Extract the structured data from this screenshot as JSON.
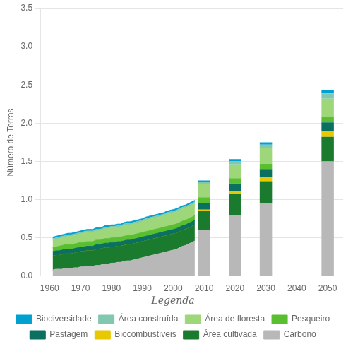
{
  "chart_data": {
    "type": "stacked_area_bar",
    "y_label": "Número de Terras",
    "legend_title": "Legenda",
    "legend": "bottom",
    "stacked": true,
    "grid": "y",
    "xlim": [
      1957,
      2055
    ],
    "xticks": [
      1960,
      1970,
      1980,
      1990,
      2000,
      2010,
      2020,
      2030,
      2040,
      2050
    ],
    "ylim": [
      0,
      3.5
    ],
    "yticks": [
      {
        "value": 0,
        "label": "0.0"
      },
      0.5,
      {
        "value": 1.0,
        "label": "1.0"
      },
      1.5,
      {
        "value": 2.0,
        "label": "2.0"
      },
      2.5,
      {
        "value": 3.0,
        "label": "3.0"
      },
      3.5
    ],
    "x": [
      1961,
      1962,
      1963,
      1964,
      1965,
      1966,
      1967,
      1968,
      1969,
      1970,
      1971,
      1972,
      1973,
      1974,
      1975,
      1976,
      1977,
      1978,
      1979,
      1980,
      1981,
      1982,
      1983,
      1984,
      1985,
      1986,
      1987,
      1988,
      1989,
      1990,
      1991,
      1992,
      1993,
      1994,
      1995,
      1996,
      1997,
      1998,
      1999,
      2000,
      2001,
      2002,
      2003,
      2004,
      2005,
      2006,
      2007
    ],
    "series": [
      {
        "name": "Carbono",
        "color": "#b8b8b8",
        "type": "area",
        "values": [
          0.08,
          0.09,
          0.09,
          0.09,
          0.1,
          0.1,
          0.1,
          0.11,
          0.11,
          0.12,
          0.12,
          0.13,
          0.13,
          0.13,
          0.14,
          0.14,
          0.15,
          0.16,
          0.16,
          0.17,
          0.17,
          0.18,
          0.18,
          0.19,
          0.2,
          0.2,
          0.21,
          0.22,
          0.23,
          0.24,
          0.25,
          0.26,
          0.27,
          0.28,
          0.29,
          0.3,
          0.31,
          0.32,
          0.33,
          0.34,
          0.35,
          0.37,
          0.39,
          0.4,
          0.42,
          0.44,
          0.46
        ]
      },
      {
        "name": "Área cultivada",
        "color": "#1a7a2e",
        "type": "area",
        "values": [
          0.18,
          0.18,
          0.18,
          0.19,
          0.19,
          0.19,
          0.19,
          0.19,
          0.2,
          0.2,
          0.2,
          0.2,
          0.2,
          0.2,
          0.21,
          0.21,
          0.21,
          0.21,
          0.21,
          0.21,
          0.21,
          0.21,
          0.21,
          0.21,
          0.21,
          0.21,
          0.21,
          0.21,
          0.21,
          0.21,
          0.21,
          0.21,
          0.21,
          0.21,
          0.21,
          0.21,
          0.21,
          0.21,
          0.21,
          0.21,
          0.21,
          0.21,
          0.21,
          0.21,
          0.21,
          0.21,
          0.21
        ]
      },
      {
        "name": "Biocombustíveis",
        "color": "#e8c800",
        "type": "area",
        "values": [
          0.0,
          0.0,
          0.0,
          0.0,
          0.0,
          0.0,
          0.0,
          0.0,
          0.0,
          0.0,
          0.0,
          0.0,
          0.0,
          0.0,
          0.0,
          0.0,
          0.0,
          0.0,
          0.0,
          0.0,
          0.0,
          0.0,
          0.0,
          0.0,
          0.0,
          0.0,
          0.0,
          0.0,
          0.0,
          0.0,
          0.0,
          0.0,
          0.0,
          0.0,
          0.0,
          0.0,
          0.0,
          0.0,
          0.0,
          0.0,
          0.0,
          0.0,
          0.0,
          0.0,
          0.0,
          0.0,
          0.0
        ]
      },
      {
        "name": "Pastagem",
        "color": "#0a7060",
        "type": "area",
        "values": [
          0.06,
          0.06,
          0.06,
          0.06,
          0.06,
          0.06,
          0.06,
          0.06,
          0.06,
          0.06,
          0.06,
          0.06,
          0.06,
          0.06,
          0.06,
          0.06,
          0.06,
          0.06,
          0.06,
          0.06,
          0.06,
          0.06,
          0.06,
          0.06,
          0.06,
          0.06,
          0.06,
          0.06,
          0.06,
          0.06,
          0.06,
          0.06,
          0.06,
          0.06,
          0.06,
          0.06,
          0.06,
          0.06,
          0.06,
          0.06,
          0.06,
          0.06,
          0.06,
          0.06,
          0.06,
          0.06,
          0.06
        ]
      },
      {
        "name": "Pesqueiro",
        "color": "#5abf30",
        "type": "area",
        "values": [
          0.05,
          0.05,
          0.06,
          0.06,
          0.06,
          0.06,
          0.06,
          0.06,
          0.06,
          0.06,
          0.06,
          0.06,
          0.06,
          0.06,
          0.06,
          0.06,
          0.06,
          0.06,
          0.06,
          0.06,
          0.06,
          0.06,
          0.06,
          0.06,
          0.06,
          0.06,
          0.06,
          0.06,
          0.06,
          0.06,
          0.06,
          0.06,
          0.06,
          0.06,
          0.06,
          0.06,
          0.06,
          0.06,
          0.06,
          0.06,
          0.06,
          0.06,
          0.06,
          0.06,
          0.06,
          0.06,
          0.06
        ]
      },
      {
        "name": "Área de floresta",
        "color": "#9ed67a",
        "type": "area",
        "values": [
          0.1,
          0.1,
          0.1,
          0.1,
          0.1,
          0.11,
          0.11,
          0.11,
          0.11,
          0.11,
          0.12,
          0.12,
          0.12,
          0.12,
          0.12,
          0.12,
          0.12,
          0.13,
          0.13,
          0.13,
          0.13,
          0.13,
          0.13,
          0.14,
          0.14,
          0.14,
          0.14,
          0.14,
          0.14,
          0.14,
          0.15,
          0.15,
          0.15,
          0.15,
          0.15,
          0.15,
          0.15,
          0.16,
          0.16,
          0.16,
          0.16,
          0.16,
          0.16,
          0.16,
          0.16,
          0.16,
          0.16
        ]
      },
      {
        "name": "Área construída",
        "color": "#82c8b0",
        "type": "area",
        "values": [
          0.02,
          0.02,
          0.02,
          0.02,
          0.02,
          0.02,
          0.02,
          0.02,
          0.02,
          0.02,
          0.02,
          0.02,
          0.02,
          0.02,
          0.02,
          0.02,
          0.02,
          0.02,
          0.02,
          0.02,
          0.02,
          0.02,
          0.02,
          0.02,
          0.02,
          0.02,
          0.02,
          0.02,
          0.02,
          0.02,
          0.02,
          0.02,
          0.02,
          0.02,
          0.02,
          0.02,
          0.02,
          0.02,
          0.02,
          0.02,
          0.02,
          0.02,
          0.02,
          0.02,
          0.02,
          0.02,
          0.02
        ]
      },
      {
        "name": "Biodiversidade",
        "color": "#00a0d0",
        "type": "area",
        "values": [
          0.02,
          0.02,
          0.02,
          0.02,
          0.02,
          0.02,
          0.02,
          0.02,
          0.02,
          0.02,
          0.02,
          0.02,
          0.02,
          0.02,
          0.02,
          0.02,
          0.02,
          0.02,
          0.02,
          0.02,
          0.02,
          0.02,
          0.02,
          0.02,
          0.02,
          0.02,
          0.02,
          0.02,
          0.02,
          0.02,
          0.02,
          0.02,
          0.02,
          0.02,
          0.02,
          0.02,
          0.02,
          0.02,
          0.02,
          0.02,
          0.02,
          0.02,
          0.02,
          0.02,
          0.02,
          0.02,
          0.02
        ]
      },
      {
        "name": "Carbono",
        "color": "#b8b8b8",
        "type": "bar",
        "x": [
          2010,
          2020,
          2030,
          2050
        ],
        "values": [
          0.6,
          0.8,
          0.95,
          1.5
        ]
      },
      {
        "name": "Área cultivada",
        "color": "#1a7a2e",
        "type": "bar",
        "x": [
          2010,
          2020,
          2030,
          2050
        ],
        "values": [
          0.25,
          0.27,
          0.29,
          0.32
        ]
      },
      {
        "name": "Biocombustíveis",
        "color": "#e8c800",
        "type": "bar",
        "x": [
          2010,
          2020,
          2030,
          2050
        ],
        "values": [
          0.02,
          0.04,
          0.06,
          0.08
        ]
      },
      {
        "name": "Pastagem",
        "color": "#0a7060",
        "type": "bar",
        "x": [
          2010,
          2020,
          2030,
          2050
        ],
        "values": [
          0.09,
          0.1,
          0.1,
          0.11
        ]
      },
      {
        "name": "Pesqueiro",
        "color": "#5abf30",
        "type": "bar",
        "x": [
          2010,
          2020,
          2030,
          2050
        ],
        "values": [
          0.07,
          0.07,
          0.07,
          0.07
        ]
      },
      {
        "name": "Área de floresta",
        "color": "#9ed67a",
        "type": "bar",
        "x": [
          2010,
          2020,
          2030,
          2050
        ],
        "values": [
          0.17,
          0.18,
          0.2,
          0.24
        ]
      },
      {
        "name": "Área construída",
        "color": "#82c8b0",
        "type": "bar",
        "x": [
          2010,
          2020,
          2030,
          2050
        ],
        "values": [
          0.03,
          0.04,
          0.05,
          0.07
        ]
      },
      {
        "name": "Biodiversidade",
        "color": "#00a0d0",
        "type": "bar",
        "x": [
          2010,
          2020,
          2030,
          2050
        ],
        "values": [
          0.02,
          0.03,
          0.03,
          0.04
        ]
      }
    ]
  }
}
